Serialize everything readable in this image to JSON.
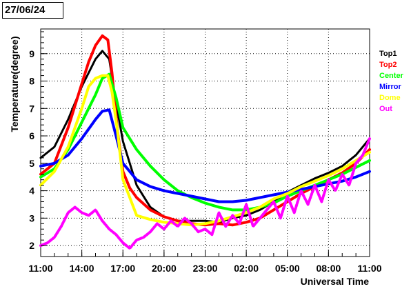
{
  "header": {
    "date": "27/06/24"
  },
  "chart_data": {
    "type": "line",
    "xlabel": "Universal Time",
    "ylabel": "Temperature(degree)",
    "x_unit": "hours since 11:00",
    "xlim": [
      0,
      24
    ],
    "ylim": [
      1.6,
      9.9
    ],
    "x_ticks": [
      {
        "v": 0,
        "label": "11:00"
      },
      {
        "v": 3,
        "label": "14:00"
      },
      {
        "v": 6,
        "label": "17:00"
      },
      {
        "v": 9,
        "label": "20:00"
      },
      {
        "v": 12,
        "label": "23:00"
      },
      {
        "v": 15,
        "label": "02:00"
      },
      {
        "v": 18,
        "label": "05:00"
      },
      {
        "v": 21,
        "label": "08:00"
      },
      {
        "v": 24,
        "label": "11:00"
      }
    ],
    "y_ticks": [
      2,
      3,
      4,
      5,
      6,
      7,
      8,
      9
    ],
    "grid": true,
    "legend_position": "right",
    "series": [
      {
        "name": "Top1",
        "color": "#000000",
        "x": [
          0,
          1,
          2,
          3,
          4,
          4.5,
          5,
          5.5,
          6,
          7,
          8,
          9,
          10,
          11,
          12,
          13,
          14,
          15,
          16,
          17,
          18,
          19,
          20,
          21,
          22,
          23,
          24
        ],
        "y": [
          5.2,
          5.6,
          6.6,
          7.8,
          8.8,
          9.1,
          8.8,
          7.2,
          5.8,
          4.2,
          3.4,
          3.05,
          2.9,
          2.9,
          2.9,
          2.85,
          3.0,
          3.1,
          3.3,
          3.6,
          3.95,
          4.2,
          4.45,
          4.65,
          4.9,
          5.3,
          5.9
        ]
      },
      {
        "name": "Top2",
        "color": "#ff0000",
        "x": [
          0,
          1,
          2,
          3,
          3.5,
          4,
          4.5,
          4.9,
          5.2,
          5.6,
          6,
          6.5,
          7,
          8,
          9,
          10,
          11,
          12,
          13,
          14,
          15,
          16,
          17,
          18,
          19,
          20,
          21,
          22,
          23,
          24
        ],
        "y": [
          4.6,
          5.0,
          6.3,
          7.9,
          8.7,
          9.3,
          9.65,
          9.5,
          8.3,
          6.2,
          4.7,
          4.1,
          3.75,
          3.3,
          3.05,
          2.9,
          2.8,
          2.75,
          2.8,
          2.75,
          2.85,
          3.0,
          3.3,
          3.6,
          3.9,
          4.15,
          4.4,
          4.65,
          5.0,
          5.5
        ]
      },
      {
        "name": "Center",
        "color": "#00ff00",
        "x": [
          0,
          1,
          2,
          3,
          4,
          4.5,
          5,
          5.5,
          6,
          7,
          8,
          9,
          10,
          11,
          12,
          13,
          14,
          15,
          16,
          17,
          18,
          19,
          20,
          21,
          22,
          23,
          24
        ],
        "y": [
          4.5,
          4.8,
          5.5,
          6.5,
          7.5,
          8.1,
          8.25,
          7.4,
          6.3,
          5.5,
          4.9,
          4.4,
          4.0,
          3.75,
          3.55,
          3.4,
          3.3,
          3.3,
          3.4,
          3.55,
          3.8,
          4.0,
          4.2,
          4.4,
          4.6,
          4.85,
          5.1
        ]
      },
      {
        "name": "Mirror",
        "color": "#0000ff",
        "x": [
          0,
          1,
          2,
          3,
          4,
          4.5,
          5,
          5.5,
          6,
          7,
          8,
          9,
          10,
          11,
          12,
          13,
          14,
          15,
          16,
          17,
          18,
          19,
          20,
          21,
          22,
          23,
          24
        ],
        "y": [
          4.9,
          5.0,
          5.3,
          5.9,
          6.6,
          6.9,
          6.95,
          6.0,
          5.0,
          4.4,
          4.15,
          4.0,
          3.9,
          3.8,
          3.7,
          3.6,
          3.6,
          3.65,
          3.75,
          3.85,
          3.95,
          4.05,
          4.15,
          4.25,
          4.35,
          4.5,
          4.7
        ]
      },
      {
        "name": "Dome",
        "color": "#ffff00",
        "x": [
          0,
          1,
          2,
          3,
          3.5,
          4,
          4.5,
          4.9,
          5.2,
          5.6,
          6,
          7,
          8,
          9,
          10,
          11,
          12,
          13,
          14,
          15,
          16,
          17,
          18,
          19,
          20,
          21,
          22,
          23,
          24
        ],
        "y": [
          4.2,
          4.7,
          5.6,
          7.0,
          7.8,
          8.1,
          8.2,
          8.2,
          7.6,
          6.2,
          4.4,
          3.1,
          2.95,
          2.85,
          2.8,
          2.75,
          2.8,
          2.9,
          3.05,
          3.2,
          3.4,
          3.7,
          3.9,
          4.15,
          4.35,
          4.55,
          4.8,
          5.1,
          5.4
        ]
      },
      {
        "name": "Out",
        "color": "#ff00ff",
        "x": [
          0,
          0.5,
          1,
          1.5,
          2,
          2.5,
          3,
          3.5,
          4,
          4.5,
          5,
          5.5,
          6,
          6.5,
          7,
          7.5,
          8,
          8.5,
          9,
          9.5,
          10,
          10.5,
          11,
          11.5,
          12,
          12.5,
          13,
          13.5,
          14,
          14.5,
          15,
          15.5,
          16,
          16.5,
          17,
          17.5,
          18,
          18.5,
          19,
          19.5,
          20,
          20.5,
          21,
          21.5,
          22,
          22.5,
          23,
          23.5,
          24
        ],
        "y": [
          2.0,
          2.1,
          2.3,
          2.7,
          3.2,
          3.4,
          3.2,
          3.1,
          3.3,
          2.9,
          2.6,
          2.4,
          2.1,
          1.9,
          2.2,
          2.3,
          2.5,
          2.8,
          2.6,
          2.9,
          2.7,
          3.0,
          2.8,
          2.5,
          2.6,
          2.4,
          3.2,
          2.7,
          3.1,
          2.8,
          3.5,
          2.7,
          3.0,
          3.3,
          3.6,
          3.0,
          3.8,
          3.2,
          4.0,
          3.5,
          4.2,
          3.6,
          4.4,
          4.0,
          4.6,
          4.2,
          5.0,
          5.3,
          5.9
        ]
      }
    ]
  }
}
